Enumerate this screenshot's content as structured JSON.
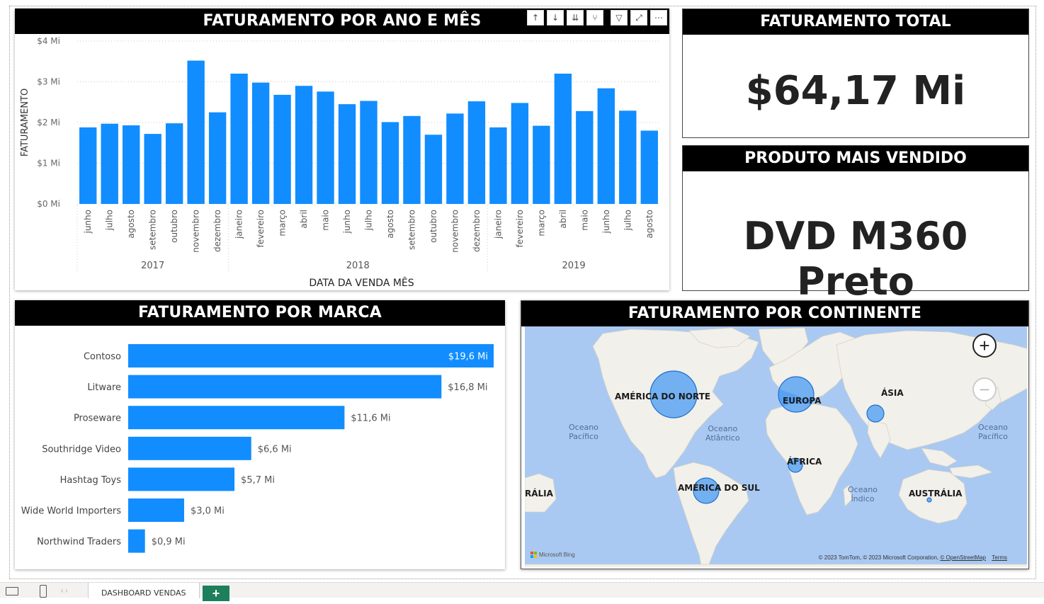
{
  "colors": {
    "bar": "#118dff",
    "title_bg": "#000000",
    "bubble": "#2c8df5",
    "map_water": "#a9c9f2",
    "map_land": "#f2f0ea"
  },
  "toolbar_icons": [
    "arrow-up-icon",
    "arrow-down-icon",
    "double-arrow-down-icon",
    "expand-hierarchy-icon",
    "filter-icon",
    "focus-mode-icon",
    "more-options-icon"
  ],
  "panels": {
    "monthly": {
      "title": "FATURAMENTO POR ANO E MÊS"
    },
    "total": {
      "title": "FATURAMENTO TOTAL",
      "value": "$64,17 Mi"
    },
    "top_product": {
      "title": "PRODUTO MAIS VENDIDO",
      "value": "DVD M360 Preto"
    },
    "brand": {
      "title": "FATURAMENTO POR MARCA"
    },
    "continent": {
      "title": "FATURAMENTO POR CONTINENTE"
    }
  },
  "chart_data": [
    {
      "type": "bar",
      "title": "FATURAMENTO POR ANO E MÊS",
      "xlabel": "DATA DA VENDA MÊS",
      "ylabel": "FATURAMENTO",
      "ylim": [
        0,
        4
      ],
      "yticks": [
        "$0 Mi",
        "$1 Mi",
        "$2 Mi",
        "$3 Mi",
        "$4 Mi"
      ],
      "grid": true,
      "groups": [
        {
          "label": "2017",
          "count": 7
        },
        {
          "label": "2018",
          "count": 12
        },
        {
          "label": "2019",
          "count": 8
        }
      ],
      "categories": [
        "junho",
        "julho",
        "agosto",
        "setembro",
        "outubro",
        "novembro",
        "dezembro",
        "janeiro",
        "fevereiro",
        "março",
        "abril",
        "maio",
        "junho",
        "julho",
        "agosto",
        "setembro",
        "outubro",
        "novembro",
        "dezembro",
        "janeiro",
        "fevereiro",
        "março",
        "abril",
        "maio",
        "junho",
        "julho",
        "agosto"
      ],
      "values": [
        1.88,
        1.97,
        1.93,
        1.72,
        1.98,
        3.52,
        2.25,
        3.2,
        2.98,
        2.68,
        2.9,
        2.76,
        2.45,
        2.53,
        2.01,
        2.16,
        1.7,
        2.22,
        2.52,
        1.88,
        2.48,
        1.92,
        3.2,
        2.28,
        2.84,
        2.29,
        1.8
      ]
    },
    {
      "type": "bar",
      "orientation": "horizontal",
      "title": "FATURAMENTO POR MARCA",
      "categories": [
        "Contoso",
        "Litware",
        "Proseware",
        "Southridge Video",
        "Hashtag Toys",
        "Wide World Importers",
        "Northwind Traders"
      ],
      "values": [
        19.6,
        16.8,
        11.6,
        6.6,
        5.7,
        3.0,
        0.9
      ],
      "labels": [
        "$19,6 Mi",
        "$16,8 Mi",
        "$11,6 Mi",
        "$6,6 Mi",
        "$5,7 Mi",
        "$3,0 Mi",
        "$0,9 Mi"
      ]
    }
  ],
  "map": {
    "continents": [
      {
        "name": "AMÉRICA DO NORTE"
      },
      {
        "name": "EUROPA"
      },
      {
        "name": "ÁSIA"
      },
      {
        "name": "ÁFRICA"
      },
      {
        "name": "AMÉRICA DO SUL"
      },
      {
        "name": "AUSTRÁLIA"
      },
      {
        "name": "RÁLIA"
      }
    ],
    "oceans": [
      "Oceano\nPacífico",
      "Oceano\nAtlântico",
      "Oceano\nPacífico",
      "Oceano\nÍndico"
    ],
    "bing_logo": "Microsoft Bing",
    "copyright": "© 2023 TomTom, © 2023 Microsoft Corporation,",
    "osm_link": "© OpenStreetMap",
    "terms_link": "Terms",
    "zoom_in": "+",
    "zoom_out": "−"
  },
  "bottom_bar": {
    "page_tab": "DASHBOARD VENDAS",
    "add_tab": "+"
  }
}
